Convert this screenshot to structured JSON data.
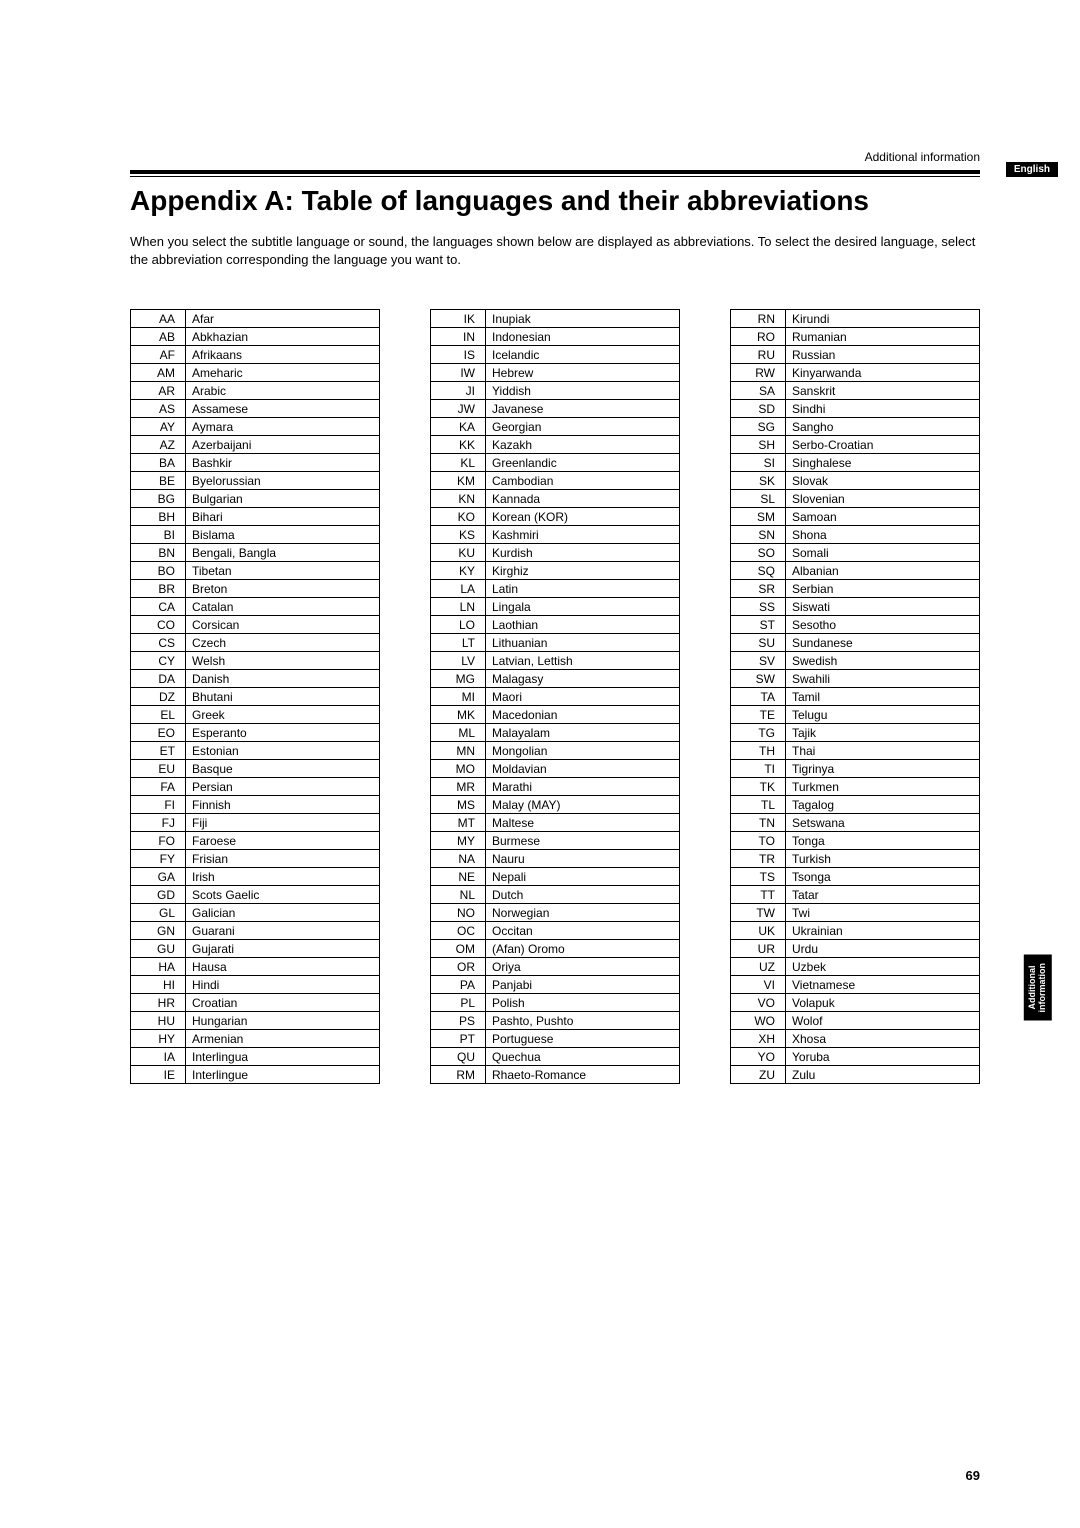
{
  "breadcrumb": "Additional information",
  "lang_badge": "English",
  "title": "Appendix A: Table of languages and their abbreviations",
  "intro": "When you select the subtitle language or sound, the languages shown below are displayed as abbreviations.  To select the desired language, select the abbreviation corresponding the language you want to.",
  "side_tab_line1": "Additional",
  "side_tab_line2": "information",
  "page_number": "69",
  "col1": [
    {
      "code": "AA",
      "name": "Afar"
    },
    {
      "code": "AB",
      "name": "Abkhazian"
    },
    {
      "code": "AF",
      "name": "Afrikaans"
    },
    {
      "code": "AM",
      "name": "Ameharic"
    },
    {
      "code": "AR",
      "name": "Arabic"
    },
    {
      "code": "AS",
      "name": "Assamese"
    },
    {
      "code": "AY",
      "name": "Aymara"
    },
    {
      "code": "AZ",
      "name": "Azerbaijani"
    },
    {
      "code": "BA",
      "name": "Bashkir"
    },
    {
      "code": "BE",
      "name": "Byelorussian"
    },
    {
      "code": "BG",
      "name": "Bulgarian"
    },
    {
      "code": "BH",
      "name": "Bihari"
    },
    {
      "code": "BI",
      "name": "Bislama"
    },
    {
      "code": "BN",
      "name": "Bengali, Bangla"
    },
    {
      "code": "BO",
      "name": "Tibetan"
    },
    {
      "code": "BR",
      "name": "Breton"
    },
    {
      "code": "CA",
      "name": "Catalan"
    },
    {
      "code": "CO",
      "name": "Corsican"
    },
    {
      "code": "CS",
      "name": "Czech"
    },
    {
      "code": "CY",
      "name": "Welsh"
    },
    {
      "code": "DA",
      "name": "Danish"
    },
    {
      "code": "DZ",
      "name": "Bhutani"
    },
    {
      "code": "EL",
      "name": "Greek"
    },
    {
      "code": "EO",
      "name": "Esperanto"
    },
    {
      "code": "ET",
      "name": "Estonian"
    },
    {
      "code": "EU",
      "name": "Basque"
    },
    {
      "code": "FA",
      "name": "Persian"
    },
    {
      "code": "FI",
      "name": "Finnish"
    },
    {
      "code": "FJ",
      "name": "Fiji"
    },
    {
      "code": "FO",
      "name": "Faroese"
    },
    {
      "code": "FY",
      "name": "Frisian"
    },
    {
      "code": "GA",
      "name": "Irish"
    },
    {
      "code": "GD",
      "name": "Scots Gaelic"
    },
    {
      "code": "GL",
      "name": "Galician"
    },
    {
      "code": "GN",
      "name": "Guarani"
    },
    {
      "code": "GU",
      "name": "Gujarati"
    },
    {
      "code": "HA",
      "name": "Hausa"
    },
    {
      "code": "HI",
      "name": "Hindi"
    },
    {
      "code": "HR",
      "name": "Croatian"
    },
    {
      "code": "HU",
      "name": "Hungarian"
    },
    {
      "code": "HY",
      "name": "Armenian"
    },
    {
      "code": "IA",
      "name": "Interlingua"
    },
    {
      "code": "IE",
      "name": "Interlingue"
    }
  ],
  "col2": [
    {
      "code": "IK",
      "name": "Inupiak"
    },
    {
      "code": "IN",
      "name": "Indonesian"
    },
    {
      "code": "IS",
      "name": "Icelandic"
    },
    {
      "code": "IW",
      "name": "Hebrew"
    },
    {
      "code": "JI",
      "name": "Yiddish"
    },
    {
      "code": "JW",
      "name": "Javanese"
    },
    {
      "code": "KA",
      "name": "Georgian"
    },
    {
      "code": "KK",
      "name": "Kazakh"
    },
    {
      "code": "KL",
      "name": "Greenlandic"
    },
    {
      "code": "KM",
      "name": "Cambodian"
    },
    {
      "code": "KN",
      "name": "Kannada"
    },
    {
      "code": "KO",
      "name": "Korean (KOR)"
    },
    {
      "code": "KS",
      "name": "Kashmiri"
    },
    {
      "code": "KU",
      "name": "Kurdish"
    },
    {
      "code": "KY",
      "name": "Kirghiz"
    },
    {
      "code": "LA",
      "name": "Latin"
    },
    {
      "code": "LN",
      "name": "Lingala"
    },
    {
      "code": "LO",
      "name": "Laothian"
    },
    {
      "code": "LT",
      "name": "Lithuanian"
    },
    {
      "code": "LV",
      "name": "Latvian, Lettish"
    },
    {
      "code": "MG",
      "name": "Malagasy"
    },
    {
      "code": "MI",
      "name": "Maori"
    },
    {
      "code": "MK",
      "name": "Macedonian"
    },
    {
      "code": "ML",
      "name": "Malayalam"
    },
    {
      "code": "MN",
      "name": "Mongolian"
    },
    {
      "code": "MO",
      "name": "Moldavian"
    },
    {
      "code": "MR",
      "name": "Marathi"
    },
    {
      "code": "MS",
      "name": "Malay (MAY)"
    },
    {
      "code": "MT",
      "name": "Maltese"
    },
    {
      "code": "MY",
      "name": "Burmese"
    },
    {
      "code": "NA",
      "name": "Nauru"
    },
    {
      "code": "NE",
      "name": "Nepali"
    },
    {
      "code": "NL",
      "name": "Dutch"
    },
    {
      "code": "NO",
      "name": "Norwegian"
    },
    {
      "code": "OC",
      "name": "Occitan"
    },
    {
      "code": "OM",
      "name": "(Afan) Oromo"
    },
    {
      "code": "OR",
      "name": "Oriya"
    },
    {
      "code": "PA",
      "name": "Panjabi"
    },
    {
      "code": "PL",
      "name": "Polish"
    },
    {
      "code": "PS",
      "name": "Pashto, Pushto"
    },
    {
      "code": "PT",
      "name": "Portuguese"
    },
    {
      "code": "QU",
      "name": "Quechua"
    },
    {
      "code": "RM",
      "name": "Rhaeto-Romance"
    }
  ],
  "col3": [
    {
      "code": "RN",
      "name": "Kirundi"
    },
    {
      "code": "RO",
      "name": "Rumanian"
    },
    {
      "code": "RU",
      "name": "Russian"
    },
    {
      "code": "RW",
      "name": "Kinyarwanda"
    },
    {
      "code": "SA",
      "name": "Sanskrit"
    },
    {
      "code": "SD",
      "name": "Sindhi"
    },
    {
      "code": "SG",
      "name": "Sangho"
    },
    {
      "code": "SH",
      "name": "Serbo-Croatian"
    },
    {
      "code": "SI",
      "name": "Singhalese"
    },
    {
      "code": "SK",
      "name": "Slovak"
    },
    {
      "code": "SL",
      "name": "Slovenian"
    },
    {
      "code": "SM",
      "name": "Samoan"
    },
    {
      "code": "SN",
      "name": "Shona"
    },
    {
      "code": "SO",
      "name": "Somali"
    },
    {
      "code": "SQ",
      "name": "Albanian"
    },
    {
      "code": "SR",
      "name": "Serbian"
    },
    {
      "code": "SS",
      "name": "Siswati"
    },
    {
      "code": "ST",
      "name": "Sesotho"
    },
    {
      "code": "SU",
      "name": "Sundanese"
    },
    {
      "code": "SV",
      "name": "Swedish"
    },
    {
      "code": "SW",
      "name": "Swahili"
    },
    {
      "code": "TA",
      "name": "Tamil"
    },
    {
      "code": "TE",
      "name": "Telugu"
    },
    {
      "code": "TG",
      "name": "Tajik"
    },
    {
      "code": "TH",
      "name": "Thai"
    },
    {
      "code": "TI",
      "name": "Tigrinya"
    },
    {
      "code": "TK",
      "name": "Turkmen"
    },
    {
      "code": "TL",
      "name": "Tagalog"
    },
    {
      "code": "TN",
      "name": "Setswana"
    },
    {
      "code": "TO",
      "name": "Tonga"
    },
    {
      "code": "TR",
      "name": "Turkish"
    },
    {
      "code": "TS",
      "name": "Tsonga"
    },
    {
      "code": "TT",
      "name": "Tatar"
    },
    {
      "code": "TW",
      "name": "Twi"
    },
    {
      "code": "UK",
      "name": "Ukrainian"
    },
    {
      "code": "UR",
      "name": "Urdu"
    },
    {
      "code": "UZ",
      "name": "Uzbek"
    },
    {
      "code": "VI",
      "name": "Vietnamese"
    },
    {
      "code": "VO",
      "name": "Volapuk"
    },
    {
      "code": "WO",
      "name": "Wolof"
    },
    {
      "code": "XH",
      "name": "Xhosa"
    },
    {
      "code": "YO",
      "name": "Yoruba"
    },
    {
      "code": "ZU",
      "name": "Zulu"
    }
  ]
}
